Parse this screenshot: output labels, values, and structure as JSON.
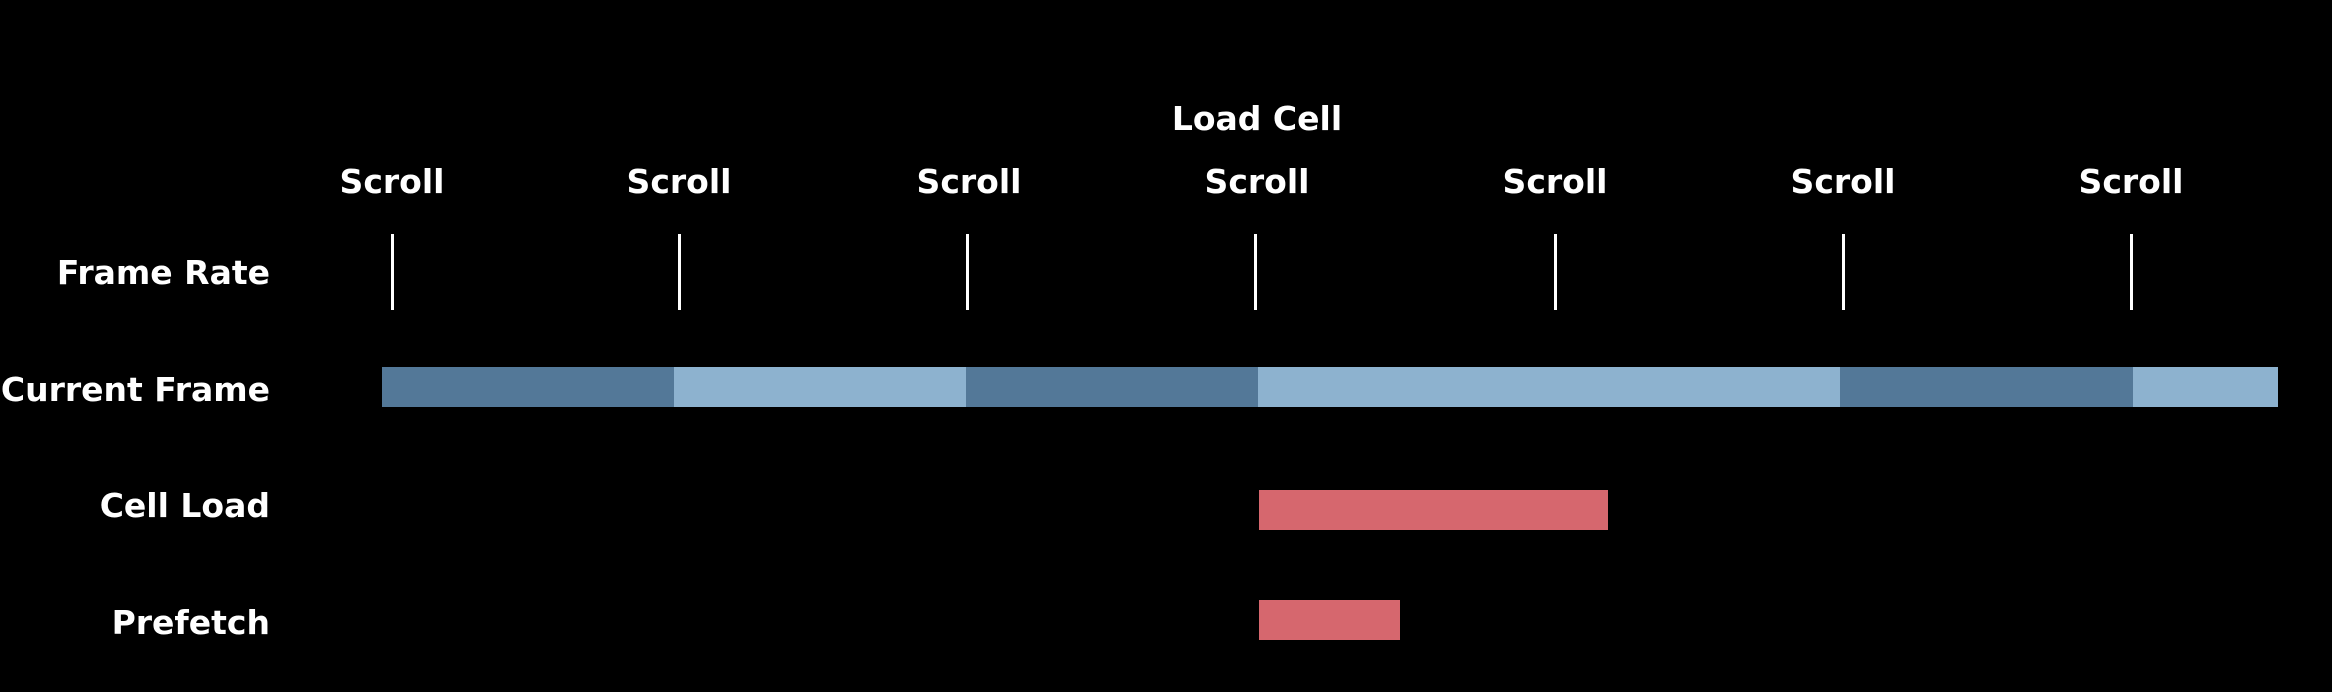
{
  "labels": {
    "frame_rate": "Frame Rate",
    "current_frame": "Current Frame",
    "cell_load": "Cell Load",
    "prefetch": "Prefetch",
    "load_cell": "Load Cell",
    "scroll": "Scroll"
  },
  "scroll_events": [
    "Scroll",
    "Scroll",
    "Scroll",
    "Scroll",
    "Scroll",
    "Scroll",
    "Scroll"
  ],
  "current_frame_segments": [
    {
      "shade": "dark"
    },
    {
      "shade": "light"
    },
    {
      "shade": "dark"
    },
    {
      "shade": "light"
    },
    {
      "shade": "dark"
    },
    {
      "shade": "light"
    }
  ],
  "colors": {
    "background": "#000000",
    "text": "#ffffff",
    "frame_dark": "#537898",
    "frame_light": "#8db2cf",
    "load_bar": "#d6676e"
  }
}
